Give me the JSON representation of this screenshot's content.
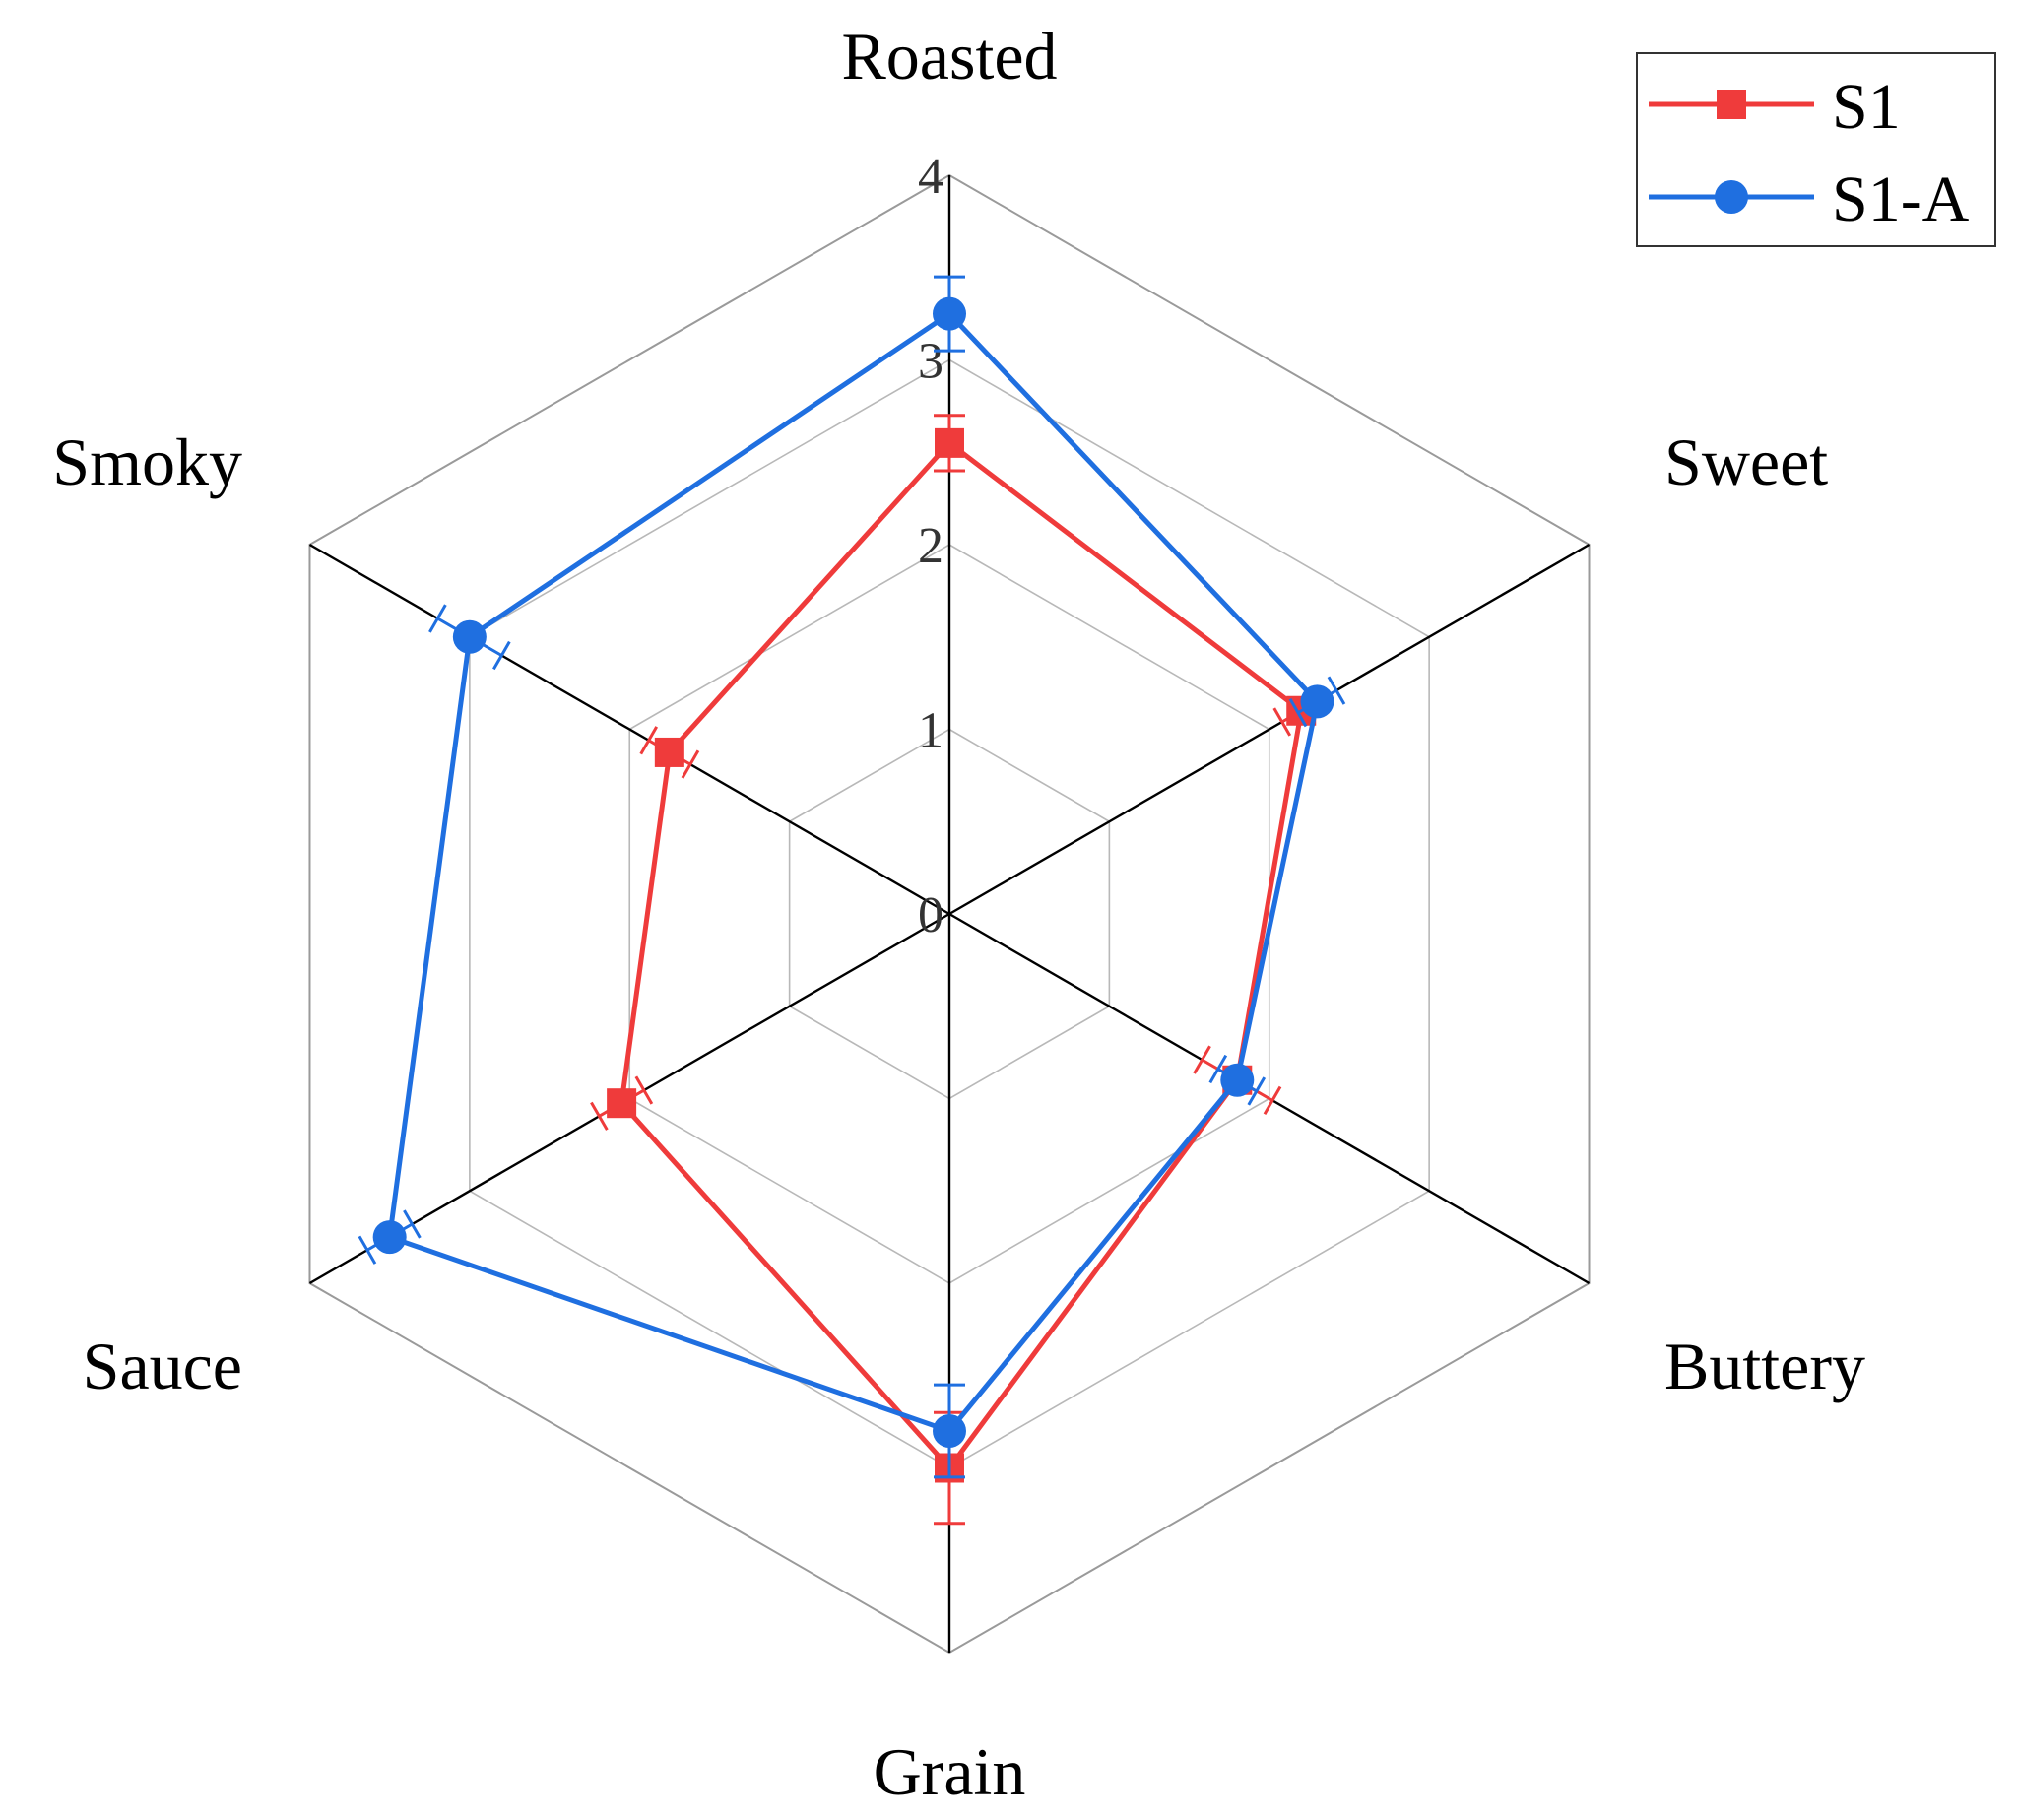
{
  "chart_data": {
    "type": "radar",
    "axes": [
      "Roasted",
      "Sweet",
      "Buttery",
      "Grain",
      "Sauce",
      "Smoky"
    ],
    "rlim": [
      0,
      4
    ],
    "ticks": [
      "0",
      "1",
      "2",
      "3",
      "4"
    ],
    "grid": true,
    "legend_position": "top-right",
    "series": [
      {
        "name": "S1",
        "color": "#ef3b3b",
        "marker": "square",
        "values": [
          2.55,
          2.2,
          1.8,
          3.0,
          2.05,
          1.75
        ],
        "errors": [
          0.15,
          0.12,
          0.22,
          0.3,
          0.14,
          0.13
        ]
      },
      {
        "name": "S1-A",
        "color": "#1f6fe0",
        "marker": "circle",
        "values": [
          3.25,
          2.3,
          1.8,
          2.8,
          3.5,
          3.0
        ],
        "errors": [
          0.2,
          0.12,
          0.12,
          0.25,
          0.14,
          0.2
        ]
      }
    ]
  }
}
